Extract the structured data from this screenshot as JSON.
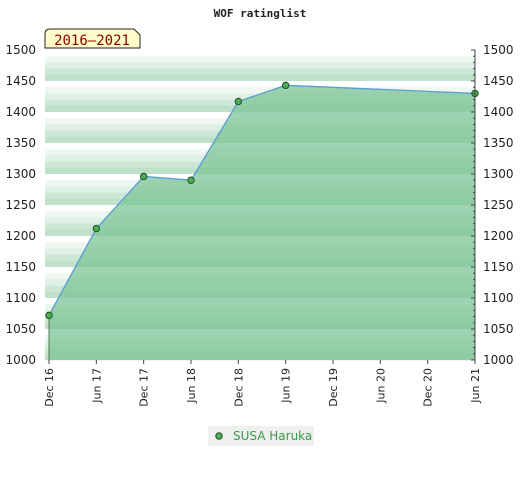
{
  "colors": {
    "line": "#5b9bd5",
    "fill": "#7cc495",
    "marker_fill": "#4caf50",
    "marker_stroke": "#1e4d2b",
    "badge_bg": "#fffbc8",
    "legend_bg": "#efefef",
    "legend_text": "#3a9a4a"
  },
  "badge": {
    "label": "2016–2021"
  },
  "chart_data": {
    "type": "area",
    "title": "WOF ratinglist",
    "xlabel": "",
    "ylabel": "",
    "x_categories": [
      "Dec 16",
      "Jun 17",
      "Dec 17",
      "Jun 18",
      "Dec 18",
      "Jun 19",
      "Dec 19",
      "Jun 20",
      "Dec 20",
      "Jun 21"
    ],
    "ylim": [
      1000,
      1500
    ],
    "yticks": [
      1000,
      1050,
      1100,
      1150,
      1200,
      1250,
      1300,
      1350,
      1400,
      1450,
      1500
    ],
    "grid": true,
    "legend_position": "bottom-center",
    "series": [
      {
        "name": "SUSA Haruka",
        "points": [
          {
            "x": "Dec 16",
            "y": 1072
          },
          {
            "x": "Jun 17",
            "y": 1212
          },
          {
            "x": "Dec 17",
            "y": 1296
          },
          {
            "x": "Jun 18",
            "y": 1290
          },
          {
            "x": "Dec 18",
            "y": 1417
          },
          {
            "x": "Jun 19",
            "y": 1443
          },
          {
            "x": "Jun 21",
            "y": 1430
          }
        ]
      }
    ]
  }
}
